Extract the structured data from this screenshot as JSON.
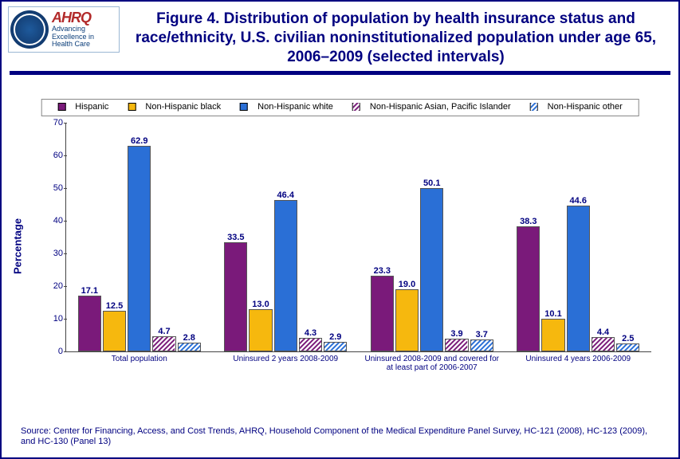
{
  "title": "Figure 4. Distribution of population by health insurance status and race/ethnicity, U.S. civilian noninstitutionalized population under age 65, 2006–2009 (selected intervals)",
  "logo": {
    "brand": "AHRQ",
    "tag1": "Advancing",
    "tag2": "Excellence in",
    "tag3": "Health Care"
  },
  "ylabel": "Percentage",
  "chart": {
    "type": "bar",
    "ylim": [
      0,
      70
    ],
    "ytick_step": 10,
    "background_color": "#ffffff",
    "axis_color": "#444444",
    "label_color": "#000080",
    "bar_border_color": "#555555",
    "group_gap_pct": 8,
    "title_fontsize": 19,
    "legend_fontsize": 11,
    "value_fontsize": 11,
    "tick_fontsize": 11,
    "group_label_fontsize": 10,
    "legend_position": "top-center",
    "aspect": "wide"
  },
  "legend": [
    {
      "label": "Hispanic",
      "fill": "#7a1a7a",
      "pattern": "solid"
    },
    {
      "label": "Non-Hispanic black",
      "fill": "#f6b80e",
      "pattern": "solid"
    },
    {
      "label": "Non-Hispanic white",
      "fill": "#2a6fd6",
      "pattern": "solid"
    },
    {
      "label": "Non-Hispanic Asian, Pacific Islander",
      "fill": "#7a1a7a",
      "pattern": "diag"
    },
    {
      "label": "Non-Hispanic other",
      "fill": "#2a6fd6",
      "pattern": "diag"
    }
  ],
  "groups": [
    {
      "label": "Total population",
      "values": [
        17.1,
        12.5,
        62.9,
        4.7,
        2.8
      ]
    },
    {
      "label": "Uninsured 2 years 2008-2009",
      "values": [
        33.5,
        13.0,
        46.4,
        4.3,
        2.9
      ]
    },
    {
      "label": "Uninsured 2008-2009 and covered for at least part of 2006-2007",
      "values": [
        23.3,
        19.0,
        50.1,
        3.9,
        3.7
      ]
    },
    {
      "label": "Uninsured 4 years 2006-2009",
      "values": [
        38.3,
        10.1,
        44.6,
        4.4,
        2.5
      ]
    }
  ],
  "source": "Source: Center for Financing, Access, and Cost Trends, AHRQ, Household Component of the Medical Expenditure Panel Survey, HC-121 (2008), HC-123 (2009), and HC-130 (Panel 13)"
}
